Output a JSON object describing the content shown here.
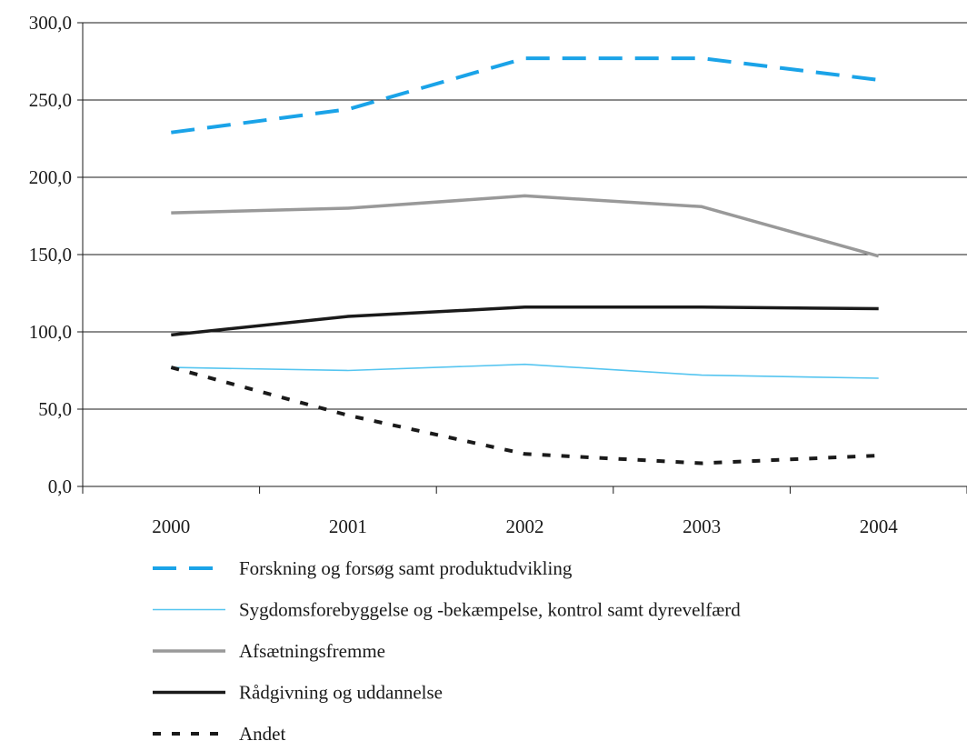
{
  "chart_data": {
    "type": "line",
    "categories": [
      "2000",
      "2001",
      "2002",
      "2003",
      "2004"
    ],
    "y_tick_labels": [
      "0,0",
      "50,0",
      "100,0",
      "150,0",
      "200,0",
      "250,0",
      "300,0"
    ],
    "ylim": [
      0,
      300
    ],
    "y_tick_step": 50,
    "grid": "horizontal",
    "legend_position": "bottom",
    "series": [
      {
        "name": "Forskning og forsøg samt produktudvikling",
        "values": [
          229,
          244,
          277,
          277,
          263
        ],
        "color": "#1aa3e8",
        "style": "dashed"
      },
      {
        "name": "Sygdomsforebyggelse og -bekæmpelse, kontrol samt dyrevelfærd",
        "values": [
          77,
          75,
          79,
          72,
          70
        ],
        "color": "#55c5f0",
        "style": "thin"
      },
      {
        "name": "Afsætningsfremme",
        "values": [
          177,
          180,
          188,
          181,
          149
        ],
        "color": "#999999",
        "style": "solid"
      },
      {
        "name": "Rådgivning og uddannelse",
        "values": [
          98,
          110,
          116,
          116,
          115
        ],
        "color": "#1a1a1a",
        "style": "solid"
      },
      {
        "name": "Andet",
        "values": [
          77,
          46,
          21,
          15,
          20
        ],
        "color": "#1a1a1a",
        "style": "dotted"
      }
    ]
  }
}
